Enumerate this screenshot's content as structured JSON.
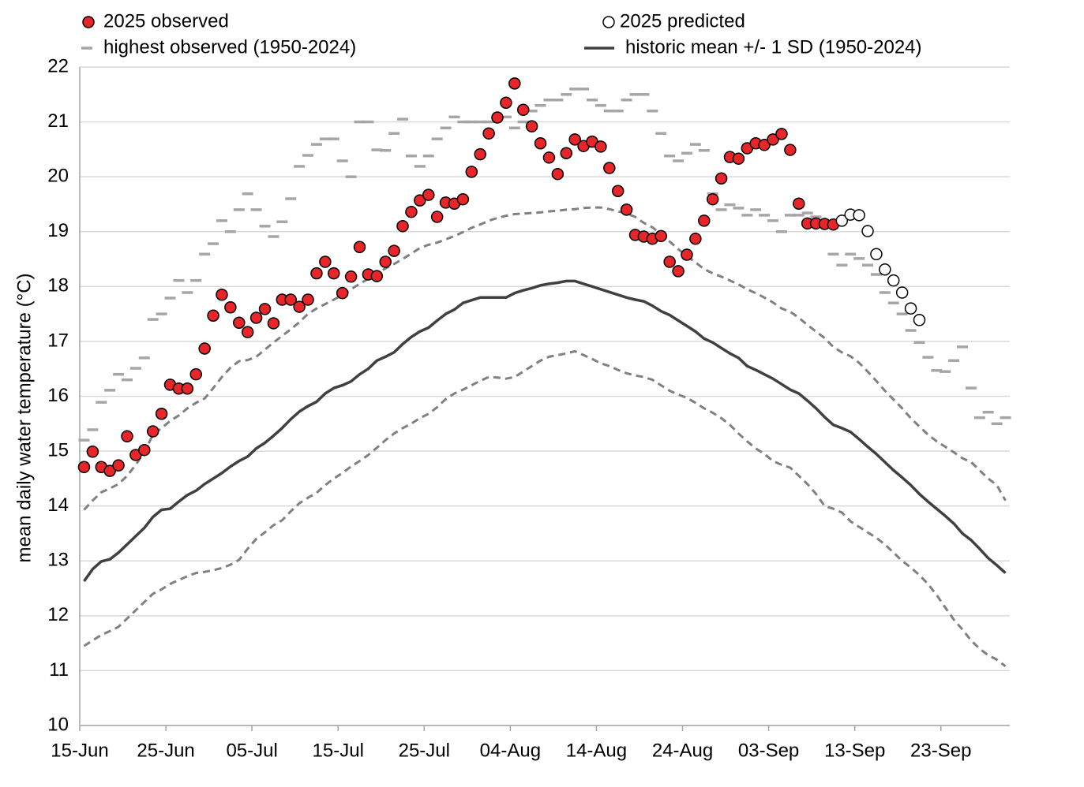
{
  "chart_data": {
    "type": "line",
    "ylabel": "mean daily water temperature (°C)",
    "x": [
      0.5,
      1.5,
      2.5,
      3.5,
      4.5,
      5.5,
      6.5,
      7.5,
      8.5,
      9.5,
      10.5,
      11.5,
      12.5,
      13.5,
      14.5,
      15.5,
      16.5,
      17.5,
      18.5,
      19.5,
      20.5,
      21.5,
      22.5,
      23.5,
      24.5,
      25.5,
      26.5,
      27.5,
      28.5,
      29.5,
      30.5,
      31.5,
      32.5,
      33.5,
      34.5,
      35.5,
      36.5,
      37.5,
      38.5,
      39.5,
      40.5,
      41.5,
      42.5,
      43.5,
      44.5,
      45.5,
      46.5,
      47.5,
      48.5,
      49.5,
      50.5,
      51.5,
      52.5,
      53.5,
      54.5,
      55.5,
      56.5,
      57.5,
      58.5,
      59.5,
      60.5,
      61.5,
      62.5,
      63.5,
      64.5,
      65.5,
      66.5,
      67.5,
      68.5,
      69.5,
      70.5,
      71.5,
      72.5,
      73.5,
      74.5,
      75.5,
      76.5,
      77.5,
      78.5,
      79.5,
      80.5,
      81.5,
      82.5,
      83.5,
      84.5,
      85.5,
      86.5,
      87.5,
      88.5,
      89.5,
      90.5,
      91.5,
      92.5,
      93.5,
      94.5,
      95.5,
      96.5,
      97.5,
      98.5,
      99.5,
      100.5,
      101.5,
      102.5,
      103.5,
      104.5,
      105.5,
      106.5,
      107.5
    ],
    "xlim": [
      0,
      108
    ],
    "xticks": [
      {
        "value": 0,
        "label": "15-Jun"
      },
      {
        "value": 10,
        "label": "25-Jun"
      },
      {
        "value": 20,
        "label": "05-Jul"
      },
      {
        "value": 30,
        "label": "15-Jul"
      },
      {
        "value": 40,
        "label": "25-Jul"
      },
      {
        "value": 50,
        "label": "04-Aug"
      },
      {
        "value": 60,
        "label": "14-Aug"
      },
      {
        "value": 70,
        "label": "24-Aug"
      },
      {
        "value": 80,
        "label": "03-Sep"
      },
      {
        "value": 90,
        "label": "13-Sep"
      },
      {
        "value": 100,
        "label": "23-Sep"
      }
    ],
    "ylim": [
      10,
      22
    ],
    "yticks": [
      10,
      11,
      12,
      13,
      14,
      15,
      16,
      17,
      18,
      19,
      20,
      21,
      22
    ],
    "grid": true,
    "series": [
      {
        "name": "2025 observed",
        "style": "filled-circle",
        "color": "#e8262a",
        "values": [
          14.71,
          14.99,
          14.71,
          14.64,
          14.74,
          15.27,
          14.93,
          15.02,
          15.36,
          15.68,
          16.21,
          16.14,
          16.14,
          16.4,
          16.87,
          17.47,
          17.85,
          17.62,
          17.34,
          17.17,
          17.43,
          17.59,
          17.33,
          17.76,
          17.76,
          17.63,
          17.76,
          18.24,
          18.45,
          18.24,
          17.88,
          18.18,
          18.72,
          18.22,
          18.19,
          18.45,
          18.65,
          19.1,
          19.36,
          19.57,
          19.67,
          19.27,
          19.53,
          19.51,
          19.59,
          20.09,
          20.41,
          20.79,
          21.08,
          21.35,
          21.7,
          21.22,
          20.92,
          20.61,
          20.35,
          20.05,
          20.43,
          20.68,
          20.56,
          20.64,
          20.55,
          20.16,
          19.74,
          19.4,
          18.94,
          18.91,
          18.87,
          18.92,
          18.45,
          18.28,
          18.58,
          18.87,
          19.2,
          19.59,
          19.97,
          20.36,
          20.33,
          20.52,
          20.61,
          20.58,
          20.68,
          20.78,
          20.49,
          19.51,
          19.15,
          19.15,
          19.14,
          19.13,
          null,
          null,
          null,
          null,
          null,
          null,
          null,
          null,
          null,
          null,
          null,
          null,
          null,
          null,
          null,
          null,
          null,
          null,
          null,
          null
        ]
      },
      {
        "name": "2025 predicted",
        "style": "open-circle",
        "color": "#ffffff",
        "values": [
          null,
          null,
          null,
          null,
          null,
          null,
          null,
          null,
          null,
          null,
          null,
          null,
          null,
          null,
          null,
          null,
          null,
          null,
          null,
          null,
          null,
          null,
          null,
          null,
          null,
          null,
          null,
          null,
          null,
          null,
          null,
          null,
          null,
          null,
          null,
          null,
          null,
          null,
          null,
          null,
          null,
          null,
          null,
          null,
          null,
          null,
          null,
          null,
          null,
          null,
          null,
          null,
          null,
          null,
          null,
          null,
          null,
          null,
          null,
          null,
          null,
          null,
          null,
          null,
          null,
          null,
          null,
          null,
          null,
          null,
          null,
          null,
          null,
          null,
          null,
          null,
          null,
          null,
          null,
          null,
          null,
          null,
          null,
          null,
          null,
          null,
          null,
          null,
          19.2,
          19.31,
          19.3,
          19.01,
          18.59,
          18.31,
          18.11,
          17.89,
          17.6,
          17.39,
          null,
          null,
          null,
          null,
          null,
          null,
          null,
          null,
          null,
          null
        ]
      },
      {
        "name": "highest observed (1950-2024)",
        "style": "dash",
        "color": "#a6a6a6",
        "values": [
          15.2,
          15.39,
          15.89,
          16.11,
          16.4,
          16.3,
          16.51,
          16.7,
          17.4,
          17.5,
          17.79,
          18.11,
          17.89,
          18.11,
          18.59,
          18.78,
          19.2,
          19.0,
          19.4,
          19.69,
          19.4,
          19.1,
          18.91,
          19.18,
          19.6,
          20.19,
          20.39,
          20.59,
          20.69,
          20.69,
          20.29,
          20.0,
          21.0,
          21.0,
          20.49,
          20.48,
          20.79,
          21.05,
          20.38,
          20.19,
          20.38,
          20.69,
          20.89,
          21.09,
          21.0,
          21.0,
          21.0,
          21.0,
          21.09,
          21.09,
          20.89,
          21.0,
          21.2,
          21.3,
          21.4,
          21.4,
          21.5,
          21.6,
          21.6,
          21.4,
          21.3,
          21.2,
          21.2,
          21.4,
          21.5,
          21.5,
          21.2,
          20.79,
          20.38,
          20.29,
          20.43,
          20.59,
          20.48,
          19.69,
          19.4,
          19.49,
          19.43,
          19.3,
          19.4,
          19.3,
          19.2,
          19.0,
          19.3,
          19.3,
          19.34,
          19.27,
          19.1,
          18.59,
          18.39,
          18.59,
          18.51,
          18.39,
          18.22,
          17.89,
          17.7,
          17.5,
          17.2,
          16.98,
          16.71,
          16.47,
          16.45,
          16.65,
          16.9,
          16.15,
          15.61,
          15.71,
          15.5,
          15.61
        ]
      },
      {
        "name": "historic mean +/- 1 SD (1950-2024)",
        "style": "line",
        "color": "#404040",
        "values": [
          12.63,
          12.85,
          12.99,
          13.03,
          13.15,
          13.3,
          13.45,
          13.6,
          13.8,
          13.93,
          13.95,
          14.08,
          14.2,
          14.28,
          14.4,
          14.5,
          14.6,
          14.72,
          14.82,
          14.9,
          15.05,
          15.15,
          15.28,
          15.42,
          15.58,
          15.72,
          15.82,
          15.9,
          16.05,
          16.15,
          16.2,
          16.27,
          16.4,
          16.5,
          16.65,
          16.72,
          16.8,
          16.95,
          17.08,
          17.18,
          17.25,
          17.38,
          17.5,
          17.58,
          17.7,
          17.75,
          17.8,
          17.8,
          17.8,
          17.8,
          17.88,
          17.93,
          17.97,
          18.02,
          18.05,
          18.07,
          18.1,
          18.1,
          18.05,
          18.0,
          17.95,
          17.9,
          17.85,
          17.8,
          17.76,
          17.73,
          17.65,
          17.55,
          17.48,
          17.38,
          17.28,
          17.18,
          17.05,
          16.98,
          16.88,
          16.78,
          16.7,
          16.55,
          16.48,
          16.4,
          16.32,
          16.22,
          16.12,
          16.05,
          15.92,
          15.78,
          15.62,
          15.48,
          15.42,
          15.35,
          15.22,
          15.08,
          14.95,
          14.8,
          14.65,
          14.52,
          14.38,
          14.22,
          14.08,
          13.95,
          13.82,
          13.68,
          13.5,
          13.38,
          13.22,
          13.05,
          12.92,
          12.78
        ]
      },
      {
        "style": "dashed-line",
        "color": "#808080",
        "values": [
          13.93,
          14.1,
          14.25,
          14.32,
          14.4,
          14.55,
          14.75,
          14.98,
          15.3,
          15.42,
          15.55,
          15.65,
          15.78,
          15.88,
          15.96,
          16.15,
          16.35,
          16.52,
          16.64,
          16.66,
          16.72,
          16.85,
          16.98,
          17.1,
          17.22,
          17.35,
          17.5,
          17.6,
          17.68,
          17.76,
          17.85,
          17.95,
          18.05,
          18.14,
          18.24,
          18.33,
          18.41,
          18.5,
          18.6,
          18.7,
          18.76,
          18.8,
          18.86,
          18.92,
          18.99,
          19.07,
          19.13,
          19.2,
          19.25,
          19.29,
          19.32,
          19.33,
          19.34,
          19.35,
          19.37,
          19.38,
          19.4,
          19.41,
          19.43,
          19.44,
          19.44,
          19.41,
          19.37,
          19.33,
          19.27,
          19.16,
          19.08,
          18.95,
          18.82,
          18.68,
          18.56,
          18.44,
          18.32,
          18.24,
          18.18,
          18.11,
          18.04,
          17.95,
          17.88,
          17.8,
          17.71,
          17.6,
          17.54,
          17.43,
          17.3,
          17.18,
          17.06,
          16.9,
          16.8,
          16.73,
          16.61,
          16.45,
          16.28,
          16.1,
          15.94,
          15.78,
          15.6,
          15.45,
          15.3,
          15.18,
          15.08,
          14.98,
          14.87,
          14.8,
          14.65,
          14.5,
          14.38,
          14.1
        ]
      },
      {
        "style": "dashed-line",
        "color": "#808080",
        "values": [
          11.45,
          11.55,
          11.65,
          11.72,
          11.8,
          11.95,
          12.1,
          12.25,
          12.4,
          12.48,
          12.58,
          12.65,
          12.72,
          12.78,
          12.8,
          12.83,
          12.87,
          12.93,
          13.02,
          13.22,
          13.4,
          13.52,
          13.65,
          13.74,
          13.9,
          14.05,
          14.15,
          14.24,
          14.38,
          14.5,
          14.6,
          14.72,
          14.82,
          14.93,
          15.06,
          15.2,
          15.32,
          15.42,
          15.5,
          15.6,
          15.68,
          15.8,
          15.95,
          16.05,
          16.12,
          16.2,
          16.28,
          16.35,
          16.34,
          16.32,
          16.35,
          16.45,
          16.55,
          16.65,
          16.72,
          16.75,
          16.78,
          16.82,
          16.75,
          16.68,
          16.6,
          16.55,
          16.48,
          16.42,
          16.38,
          16.35,
          16.3,
          16.2,
          16.1,
          16.03,
          15.97,
          15.88,
          15.78,
          15.7,
          15.6,
          15.48,
          15.32,
          15.18,
          15.05,
          14.95,
          14.82,
          14.75,
          14.7,
          14.55,
          14.4,
          14.22,
          14.0,
          13.95,
          13.88,
          13.72,
          13.62,
          13.52,
          13.42,
          13.3,
          13.15,
          13.0,
          12.88,
          12.74,
          12.58,
          12.38,
          12.15,
          11.93,
          11.75,
          11.55,
          11.4,
          11.28,
          11.2,
          11.08
        ]
      }
    ]
  }
}
